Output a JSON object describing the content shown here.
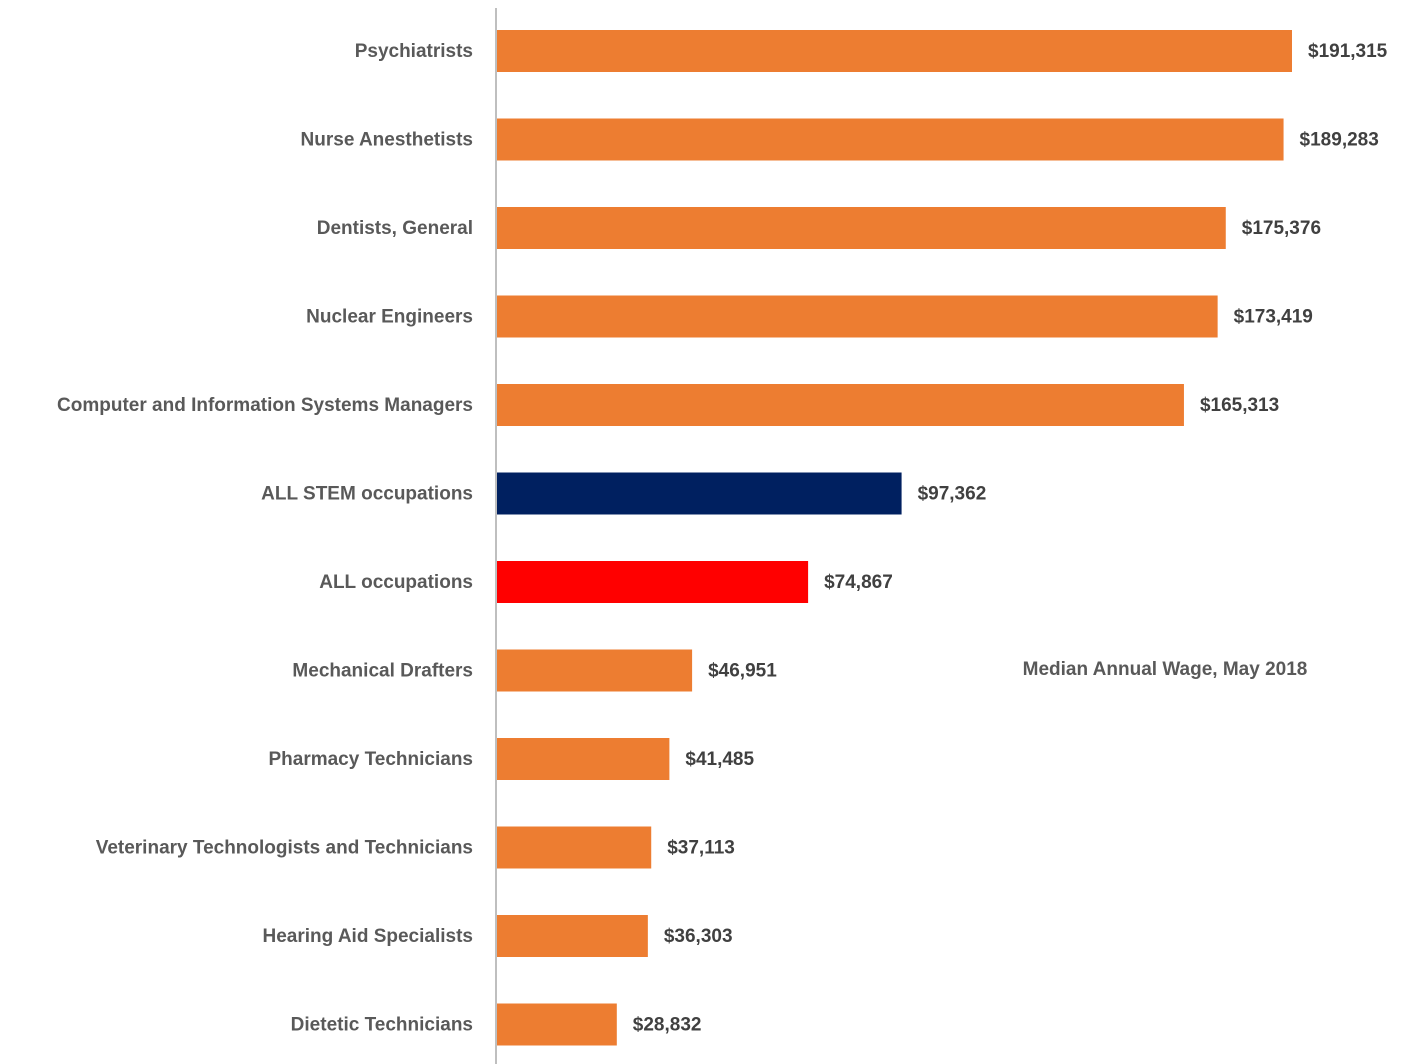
{
  "chart_data": {
    "type": "barh",
    "annotation": "Median Annual Wage, May 2018",
    "categories": [
      "Psychiatrists",
      "Nurse Anesthetists",
      "Dentists, General",
      "Nuclear Engineers",
      "Computer and Information Systems Managers",
      "ALL STEM occupations",
      "ALL occupations",
      "Mechanical Drafters",
      "Pharmacy Technicians",
      "Veterinary Technologists and Technicians",
      "Hearing Aid Specialists",
      "Dietetic Technicians"
    ],
    "values": [
      191315,
      189283,
      175376,
      173419,
      165313,
      97362,
      74867,
      46951,
      41485,
      37113,
      36303,
      28832
    ],
    "value_labels": [
      "$191,315",
      "$189,283",
      "$175,376",
      "$173,419",
      "$165,313",
      "$97,362",
      "$74,867",
      "$46,951",
      "$41,485",
      "$37,113",
      "$36,303",
      "$28,832"
    ],
    "colors": [
      "#ed7d31",
      "#ed7d31",
      "#ed7d31",
      "#ed7d31",
      "#ed7d31",
      "#002060",
      "#ff0000",
      "#ed7d31",
      "#ed7d31",
      "#ed7d31",
      "#ed7d31",
      "#ed7d31"
    ]
  }
}
